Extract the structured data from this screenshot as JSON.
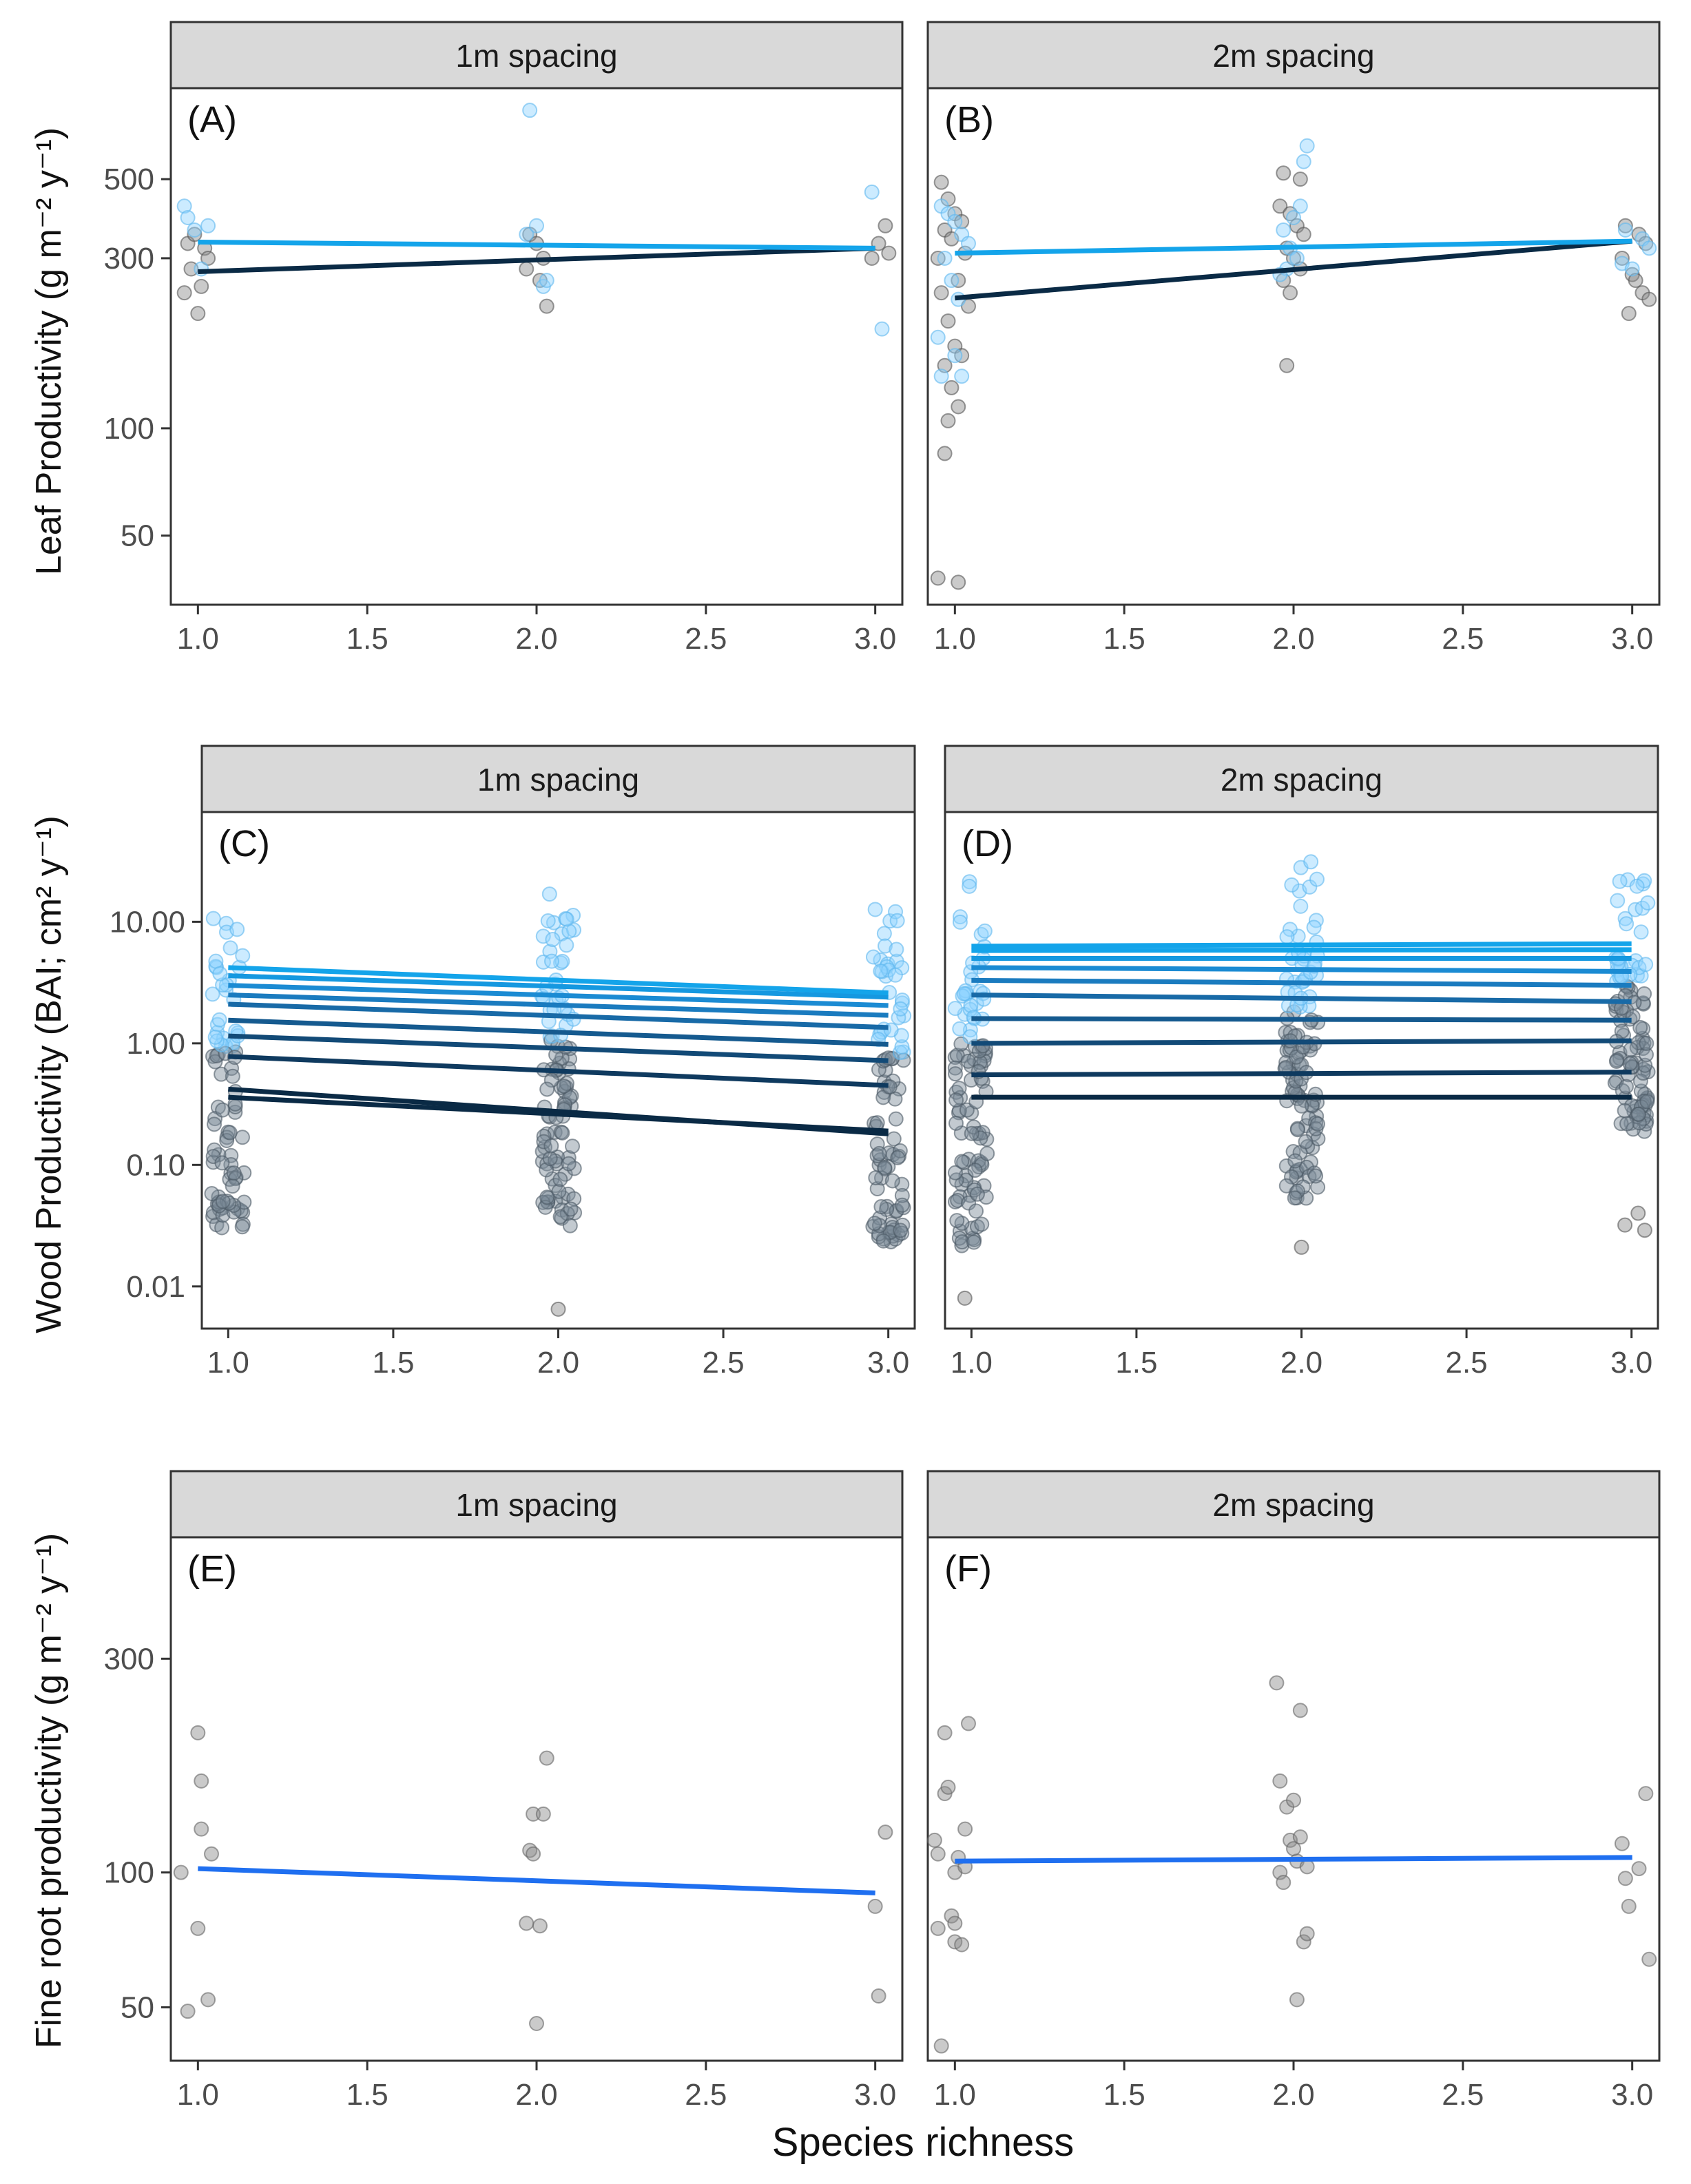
{
  "figure": {
    "x_axis_label": "Species richness",
    "y_labels": {
      "leaf": "Leaf Productivity (g m⁻² y⁻¹)",
      "wood": "Wood Productivity (BAI;  cm² y⁻¹)",
      "root": "Fine root productivity (g m⁻² y⁻¹)"
    },
    "colors": {
      "point_grey": "#7f7f7f",
      "point_light_blue": "#8fd3ff",
      "strip_fill": "#d9d9d9",
      "panel_border": "#333333",
      "dark_line": "#0a2a45",
      "light_line": "#14a4ea",
      "root_line": "#1f6ff0"
    }
  },
  "chart_data": [
    {
      "panel": "(A)",
      "strip": "1m spacing",
      "type": "scatter",
      "yscale": "log",
      "xlabel": "Species richness",
      "ylabel": "Leaf Productivity (g m-2 y-1)",
      "x_ticks": [
        "1.0",
        "1.5",
        "2.0",
        "2.5",
        "3.0"
      ],
      "x_tick_values": [
        1,
        1.5,
        2,
        2.5,
        3
      ],
      "y_ticks": [
        "50",
        "100",
        "300",
        "500"
      ],
      "y_tick_values": [
        50,
        100,
        300,
        500
      ],
      "xlim": [
        0.92,
        3.08
      ],
      "ylim": [
        32,
        900
      ],
      "points_dark": [
        [
          0.97,
          330
        ],
        [
          0.99,
          350
        ],
        [
          1.01,
          250
        ],
        [
          0.98,
          280
        ],
        [
          1.02,
          320
        ],
        [
          1.0,
          210
        ],
        [
          0.96,
          240
        ],
        [
          1.03,
          300
        ],
        [
          1.98,
          350
        ],
        [
          2.0,
          330
        ],
        [
          2.02,
          300
        ],
        [
          2.03,
          220
        ],
        [
          1.97,
          280
        ],
        [
          2.01,
          260
        ],
        [
          3.01,
          330
        ],
        [
          3.03,
          370
        ],
        [
          2.99,
          300
        ],
        [
          3.04,
          310
        ]
      ],
      "points_light": [
        [
          0.96,
          420
        ],
        [
          0.97,
          390
        ],
        [
          0.99,
          360
        ],
        [
          1.01,
          280
        ],
        [
          1.03,
          370
        ],
        [
          1.98,
          780
        ],
        [
          1.97,
          350
        ],
        [
          2.0,
          370
        ],
        [
          2.02,
          250
        ],
        [
          2.03,
          260
        ],
        [
          2.99,
          460
        ],
        [
          3.02,
          190
        ]
      ],
      "lines": [
        {
          "x": [
            1,
            3
          ],
          "y": [
            275,
            320
          ],
          "color": "#0a2a45"
        },
        {
          "x": [
            1,
            3
          ],
          "y": [
            333,
            320
          ],
          "color": "#14a4ea"
        }
      ]
    },
    {
      "panel": "(B)",
      "strip": "2m spacing",
      "type": "scatter",
      "yscale": "log",
      "xlabel": "Species richness",
      "ylabel": "Leaf Productivity (g m-2 y-1)",
      "x_ticks": [
        "1.0",
        "1.5",
        "2.0",
        "2.5",
        "3.0"
      ],
      "x_tick_values": [
        1,
        1.5,
        2,
        2.5,
        3
      ],
      "y_ticks": [
        "50",
        "100",
        "300",
        "500"
      ],
      "y_tick_values": [
        50,
        100,
        300,
        500
      ],
      "xlim": [
        0.92,
        3.08
      ],
      "ylim": [
        32,
        900
      ],
      "points_dark": [
        [
          0.96,
          490
        ],
        [
          0.98,
          440
        ],
        [
          1.0,
          400
        ],
        [
          1.02,
          380
        ],
        [
          0.97,
          360
        ],
        [
          0.99,
          340
        ],
        [
          1.03,
          310
        ],
        [
          0.95,
          300
        ],
        [
          1.01,
          260
        ],
        [
          0.96,
          240
        ],
        [
          1.04,
          220
        ],
        [
          0.98,
          200
        ],
        [
          1.0,
          170
        ],
        [
          1.02,
          160
        ],
        [
          0.97,
          150
        ],
        [
          0.99,
          130
        ],
        [
          1.01,
          115
        ],
        [
          0.98,
          105
        ],
        [
          0.97,
          85
        ],
        [
          0.95,
          38
        ],
        [
          1.01,
          37
        ],
        [
          1.97,
          520
        ],
        [
          2.02,
          500
        ],
        [
          1.96,
          420
        ],
        [
          1.99,
          400
        ],
        [
          2.01,
          370
        ],
        [
          2.03,
          350
        ],
        [
          1.98,
          320
        ],
        [
          2.0,
          300
        ],
        [
          2.02,
          280
        ],
        [
          1.97,
          260
        ],
        [
          1.99,
          240
        ],
        [
          1.98,
          150
        ],
        [
          2.98,
          370
        ],
        [
          3.02,
          350
        ],
        [
          3.04,
          330
        ],
        [
          2.97,
          300
        ],
        [
          3.0,
          270
        ],
        [
          3.01,
          260
        ],
        [
          3.03,
          240
        ],
        [
          3.05,
          230
        ],
        [
          2.99,
          210
        ]
      ],
      "points_light": [
        [
          0.96,
          420
        ],
        [
          0.98,
          400
        ],
        [
          1.0,
          380
        ],
        [
          1.02,
          350
        ],
        [
          1.04,
          330
        ],
        [
          0.97,
          300
        ],
        [
          0.99,
          260
        ],
        [
          1.01,
          230
        ],
        [
          0.95,
          180
        ],
        [
          1.0,
          160
        ],
        [
          1.02,
          140
        ],
        [
          0.96,
          140
        ],
        [
          2.04,
          620
        ],
        [
          2.03,
          560
        ],
        [
          2.02,
          420
        ],
        [
          2.0,
          390
        ],
        [
          1.97,
          360
        ],
        [
          1.99,
          320
        ],
        [
          2.01,
          300
        ],
        [
          1.98,
          280
        ],
        [
          1.96,
          270
        ],
        [
          2.98,
          360
        ],
        [
          3.03,
          340
        ],
        [
          3.05,
          320
        ],
        [
          2.97,
          290
        ],
        [
          3.0,
          280
        ]
      ],
      "lines": [
        {
          "x": [
            1,
            3
          ],
          "y": [
            232,
            335
          ],
          "color": "#0a2a45"
        },
        {
          "x": [
            1,
            3
          ],
          "y": [
            310,
            335
          ],
          "color": "#14a4ea"
        }
      ]
    },
    {
      "panel": "(C)",
      "strip": "1m spacing",
      "type": "scatter",
      "yscale": "log",
      "xlabel": "Species richness",
      "ylabel": "Wood Productivity (BAI; cm2 y-1)",
      "x_ticks": [
        "1.0",
        "1.5",
        "2.0",
        "2.5",
        "3.0"
      ],
      "x_tick_values": [
        1,
        1.5,
        2,
        2.5,
        3
      ],
      "y_ticks": [
        "0.01",
        "0.10",
        "1.00",
        "10.00"
      ],
      "y_tick_values": [
        0.01,
        0.1,
        1,
        10
      ],
      "xlim": [
        0.92,
        3.08
      ],
      "ylim": [
        0.0045,
        80
      ],
      "point_clusters": [
        {
          "x": 1,
          "ymin": 0.03,
          "ymax": 14,
          "n": 90
        },
        {
          "x": 2,
          "ymin": 0.03,
          "ymax": 20,
          "n": 110
        },
        {
          "x": 3,
          "ymin": 0.022,
          "ymax": 14,
          "n": 100
        }
      ],
      "extra_points": [
        [
          2.0,
          0.0065
        ]
      ],
      "lines": [
        {
          "x": [
            1,
            3
          ],
          "y": [
            0.42,
            0.18
          ],
          "color": "#0a2a45"
        },
        {
          "x": [
            1,
            3
          ],
          "y": [
            0.36,
            0.19
          ],
          "color": "#0a2a45"
        },
        {
          "x": [
            1,
            3
          ],
          "y": [
            0.78,
            0.45
          ],
          "color": "#0f3a5f"
        },
        {
          "x": [
            1,
            3
          ],
          "y": [
            1.15,
            0.72
          ],
          "color": "#124a77"
        },
        {
          "x": [
            1,
            3
          ],
          "y": [
            1.55,
            0.98
          ],
          "color": "#155a8f"
        },
        {
          "x": [
            1,
            3
          ],
          "y": [
            2.1,
            1.35
          ],
          "color": "#186aa7"
        },
        {
          "x": [
            1,
            3
          ],
          "y": [
            2.5,
            1.7
          ],
          "color": "#1a7bbf"
        },
        {
          "x": [
            1,
            3
          ],
          "y": [
            3.0,
            2.05
          ],
          "color": "#1b8bd3"
        },
        {
          "x": [
            1,
            3
          ],
          "y": [
            3.6,
            2.4
          ],
          "color": "#1598e0"
        },
        {
          "x": [
            1,
            3
          ],
          "y": [
            4.2,
            2.6
          ],
          "color": "#14a4ea"
        }
      ]
    },
    {
      "panel": "(D)",
      "strip": "2m spacing",
      "type": "scatter",
      "yscale": "log",
      "xlabel": "Species richness",
      "ylabel": "Wood Productivity (BAI; cm2 y-1)",
      "x_ticks": [
        "1.0",
        "1.5",
        "2.0",
        "2.5",
        "3.0"
      ],
      "x_tick_values": [
        1,
        1.5,
        2,
        2.5,
        3
      ],
      "y_ticks": [
        "0.01",
        "0.10",
        "1.00",
        "10.00"
      ],
      "y_tick_values": [
        0.01,
        0.1,
        1,
        10
      ],
      "xlim": [
        0.92,
        3.08
      ],
      "ylim": [
        0.0045,
        80
      ],
      "point_clusters": [
        {
          "x": 1,
          "ymin": 0.02,
          "ymax": 25,
          "n": 110
        },
        {
          "x": 2,
          "ymin": 0.05,
          "ymax": 35,
          "n": 120
        },
        {
          "x": 3,
          "ymin": 0.18,
          "ymax": 30,
          "n": 110
        }
      ],
      "extra_points": [
        [
          0.98,
          0.008
        ],
        [
          2.0,
          0.021
        ],
        [
          2.98,
          0.032
        ],
        [
          3.02,
          0.04
        ],
        [
          3.04,
          0.029
        ]
      ],
      "lines": [
        {
          "x": [
            1,
            3
          ],
          "y": [
            0.36,
            0.36
          ],
          "color": "#0a2a45"
        },
        {
          "x": [
            1,
            3
          ],
          "y": [
            0.55,
            0.58
          ],
          "color": "#0f3a5f"
        },
        {
          "x": [
            1,
            3
          ],
          "y": [
            1.0,
            1.05
          ],
          "color": "#124a77"
        },
        {
          "x": [
            1,
            3
          ],
          "y": [
            1.6,
            1.55
          ],
          "color": "#155a8f"
        },
        {
          "x": [
            1,
            3
          ],
          "y": [
            2.5,
            2.2
          ],
          "color": "#186aa7"
        },
        {
          "x": [
            1,
            3
          ],
          "y": [
            3.3,
            3.0
          ],
          "color": "#1a7bbf"
        },
        {
          "x": [
            1,
            3
          ],
          "y": [
            4.2,
            3.9
          ],
          "color": "#1b8bd3"
        },
        {
          "x": [
            1,
            3
          ],
          "y": [
            5.0,
            5.0
          ],
          "color": "#1598e0"
        },
        {
          "x": [
            1,
            3
          ],
          "y": [
            5.8,
            5.9
          ],
          "color": "#14a4ea"
        },
        {
          "x": [
            1,
            3
          ],
          "y": [
            6.3,
            6.6
          ],
          "color": "#14a4ea"
        }
      ]
    },
    {
      "panel": "(E)",
      "strip": "1m spacing",
      "type": "scatter",
      "yscale": "log",
      "xlabel": "Species richness",
      "ylabel": "Fine root productivity (g m-2 y-1)",
      "x_ticks": [
        "1.0",
        "1.5",
        "2.0",
        "2.5",
        "3.0"
      ],
      "x_tick_values": [
        1,
        1.5,
        2,
        2.5,
        3
      ],
      "y_ticks": [
        "50",
        "100",
        "300"
      ],
      "y_tick_values": [
        50,
        100,
        300
      ],
      "xlim": [
        0.92,
        3.08
      ],
      "ylim": [
        38,
        560
      ],
      "points": [
        [
          0.95,
          100
        ],
        [
          0.97,
          49
        ],
        [
          1.0,
          75
        ],
        [
          1.0,
          205
        ],
        [
          1.01,
          160
        ],
        [
          1.01,
          125
        ],
        [
          1.03,
          52
        ],
        [
          1.04,
          110
        ],
        [
          1.97,
          77
        ],
        [
          1.98,
          112
        ],
        [
          1.99,
          110
        ],
        [
          1.99,
          135
        ],
        [
          2.0,
          46
        ],
        [
          2.01,
          76
        ],
        [
          2.02,
          135
        ],
        [
          2.03,
          180
        ],
        [
          3.0,
          84
        ],
        [
          3.01,
          53
        ],
        [
          3.03,
          123
        ]
      ],
      "lines": [
        {
          "x": [
            1,
            3
          ],
          "y": [
            102,
            90
          ],
          "color": "#1f6ff0"
        }
      ]
    },
    {
      "panel": "(F)",
      "strip": "2m spacing",
      "type": "scatter",
      "yscale": "log",
      "xlabel": "Species richness",
      "ylabel": "Fine root productivity (g m-2 y-1)",
      "x_ticks": [
        "1.0",
        "1.5",
        "2.0",
        "2.5",
        "3.0"
      ],
      "x_tick_values": [
        1,
        1.5,
        2,
        2.5,
        3
      ],
      "y_ticks": [
        "50",
        "100",
        "300"
      ],
      "y_tick_values": [
        50,
        100,
        300
      ],
      "xlim": [
        0.92,
        3.08
      ],
      "ylim": [
        38,
        560
      ],
      "points": [
        [
          0.94,
          118
        ],
        [
          0.95,
          110
        ],
        [
          0.95,
          75
        ],
        [
          0.96,
          41
        ],
        [
          0.97,
          150
        ],
        [
          0.97,
          205
        ],
        [
          0.98,
          155
        ],
        [
          0.99,
          80
        ],
        [
          1.0,
          77
        ],
        [
          1.0,
          70
        ],
        [
          1.0,
          100
        ],
        [
          1.01,
          108
        ],
        [
          1.02,
          69
        ],
        [
          1.03,
          103
        ],
        [
          1.03,
          125
        ],
        [
          1.04,
          215
        ],
        [
          1.95,
          265
        ],
        [
          1.96,
          100
        ],
        [
          1.96,
          160
        ],
        [
          1.97,
          95
        ],
        [
          1.98,
          140
        ],
        [
          1.99,
          118
        ],
        [
          2.0,
          145
        ],
        [
          2.0,
          113
        ],
        [
          2.01,
          106
        ],
        [
          2.01,
          52
        ],
        [
          2.02,
          230
        ],
        [
          2.02,
          120
        ],
        [
          2.03,
          70
        ],
        [
          2.04,
          73
        ],
        [
          2.04,
          103
        ],
        [
          2.97,
          116
        ],
        [
          2.98,
          97
        ],
        [
          2.99,
          84
        ],
        [
          3.02,
          102
        ],
        [
          3.04,
          150
        ],
        [
          3.05,
          64
        ]
      ],
      "lines": [
        {
          "x": [
            1,
            3
          ],
          "y": [
            106,
            108
          ],
          "color": "#1f6ff0"
        }
      ]
    }
  ]
}
